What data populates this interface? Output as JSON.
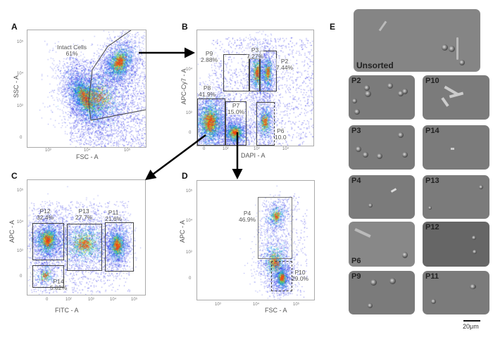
{
  "panels": {
    "A": {
      "label": "A",
      "xlabel": "FSC - A",
      "ylabel": "SSC - A",
      "xticks": [
        "10³",
        "10⁴",
        "10⁵"
      ],
      "yticks": [
        "10⁵",
        "10⁴",
        "10³",
        "0"
      ],
      "gates": [
        {
          "name": "Intact Cells",
          "pct": "61%"
        }
      ]
    },
    "B": {
      "label": "B",
      "xlabel": "DAPI - A",
      "ylabel": "APC-Cy7 - A",
      "xticks": [
        "0",
        "10²",
        "10³",
        "10⁴"
      ],
      "yticks": [
        "10⁴",
        "10³",
        "0"
      ],
      "gates": [
        {
          "name": "P9",
          "pct": "2.88%"
        },
        {
          "name": "P3",
          "pct": "7.27%"
        },
        {
          "name": "P2",
          "pct": "7.44%"
        },
        {
          "name": "P8",
          "pct": "41.9%"
        },
        {
          "name": "P7",
          "pct": "15.0%"
        },
        {
          "name": "P6",
          "pct": "10.0"
        }
      ]
    },
    "C": {
      "label": "C",
      "xlabel": "FITC - A",
      "ylabel": "APC - A",
      "xticks": [
        "0",
        "10²",
        "10³",
        "10⁴",
        "10⁵"
      ],
      "yticks": [
        "10⁵",
        "10⁴",
        "10³",
        "0"
      ],
      "gates": [
        {
          "name": "P12",
          "pct": "32.4%"
        },
        {
          "name": "P13",
          "pct": "27.7%"
        },
        {
          "name": "P11",
          "pct": "21.6%"
        },
        {
          "name": "P14",
          "pct": "5.82%"
        }
      ]
    },
    "D": {
      "label": "D",
      "xlabel": "FSC - A",
      "ylabel": "APC - A",
      "xticks": [
        "10³",
        "10⁴",
        "10⁵"
      ],
      "yticks": [
        "10⁵",
        "10⁴",
        "10³",
        "0"
      ],
      "gates": [
        {
          "name": "P4",
          "pct": "46.9%"
        },
        {
          "name": "P10",
          "pct": "29.0%"
        }
      ]
    },
    "E": {
      "label": "E",
      "images": [
        "Unsorted",
        "P2",
        "P10",
        "P3",
        "P14",
        "P4",
        "P13",
        "P6",
        "P12",
        "P9",
        "P11"
      ],
      "scale_bar": "20μm"
    }
  }
}
